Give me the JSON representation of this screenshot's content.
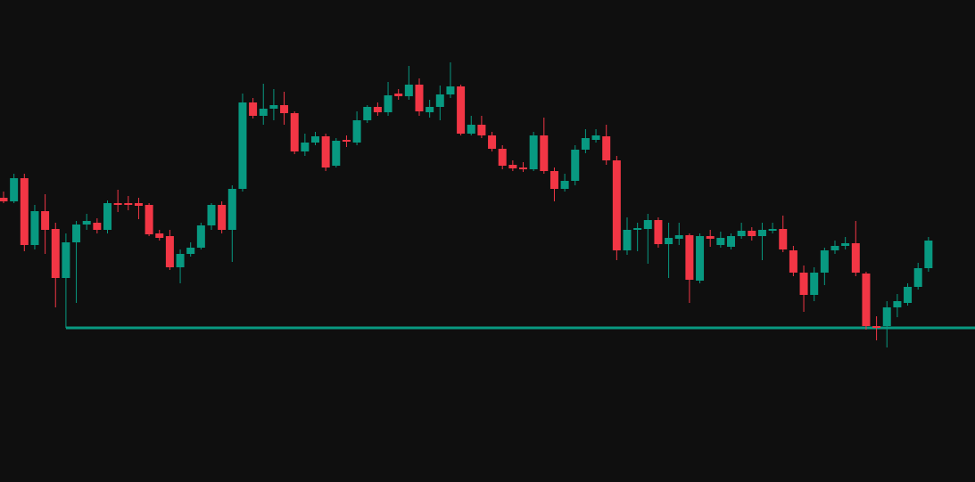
{
  "chart_data": {
    "type": "candlestick",
    "up_color": "#089981",
    "down_color": "#f23645",
    "ylim": [
      0,
      541
    ],
    "grid": false,
    "level": {
      "value": 173,
      "color": "#089981"
    },
    "open": [
      319,
      315,
      341,
      266,
      304,
      284,
      229,
      269,
      289,
      291,
      283,
      313,
      313,
      313,
      311,
      279,
      276,
      241,
      256,
      263,
      288,
      311,
      283,
      329,
      426,
      411,
      419,
      423,
      414,
      371,
      381,
      388,
      355,
      384,
      381,
      406,
      421,
      415,
      436,
      433,
      446,
      415,
      421,
      435,
      444,
      391,
      401,
      389,
      374,
      356,
      353,
      351,
      389,
      349,
      329,
      338,
      373,
      384,
      388,
      361,
      260,
      283,
      284,
      294,
      267,
      273,
      277,
      226,
      276,
      266,
      264,
      276,
      282,
      276,
      282,
      284,
      260,
      235,
      210,
      235,
      260,
      265,
      268,
      234,
      175,
      175,
      196,
      201,
      219,
      240
    ],
    "high": [
      326,
      346,
      346,
      311,
      323,
      291,
      279,
      293,
      301,
      296,
      316,
      328,
      321,
      319,
      313,
      283,
      283,
      261,
      269,
      291,
      313,
      315,
      333,
      436,
      431,
      447,
      441,
      438,
      416,
      391,
      393,
      391,
      386,
      389,
      416,
      423,
      426,
      449,
      441,
      467,
      453,
      429,
      445,
      471,
      446,
      411,
      411,
      393,
      378,
      361,
      359,
      393,
      409,
      353,
      346,
      378,
      396,
      396,
      401,
      366,
      297,
      291,
      301,
      297,
      291,
      291,
      279,
      279,
      283,
      281,
      279,
      291,
      286,
      291,
      291,
      299,
      265,
      243,
      241,
      263,
      271,
      275,
      293,
      236,
      186,
      203,
      211,
      223,
      246,
      275
    ],
    "low": [
      313,
      313,
      259,
      261,
      256,
      196,
      173,
      201,
      283,
      279,
      279,
      303,
      305,
      295,
      276,
      271,
      238,
      223,
      253,
      261,
      283,
      279,
      247,
      326,
      408,
      401,
      406,
      401,
      368,
      366,
      378,
      349,
      353,
      376,
      378,
      403,
      411,
      411,
      429,
      429,
      411,
      409,
      406,
      431,
      389,
      389,
      386,
      371,
      351,
      349,
      348,
      349,
      346,
      315,
      326,
      333,
      369,
      381,
      356,
      249,
      255,
      259,
      245,
      263,
      229,
      266,
      201,
      223,
      264,
      263,
      261,
      273,
      271,
      249,
      279,
      258,
      231,
      191,
      203,
      221,
      256,
      261,
      231,
      171,
      159,
      151,
      185,
      198,
      216,
      236
    ],
    "close": [
      315,
      341,
      266,
      304,
      283,
      229,
      269,
      289,
      293,
      283,
      313,
      311,
      311,
      310,
      278,
      274,
      241,
      256,
      263,
      288,
      311,
      283,
      329,
      426,
      411,
      419,
      423,
      414,
      371,
      381,
      388,
      353,
      383,
      382,
      406,
      421,
      415,
      434,
      433,
      446,
      416,
      421,
      435,
      444,
      391,
      401,
      389,
      374,
      355,
      352,
      351,
      389,
      349,
      329,
      338,
      373,
      386,
      389,
      361,
      260,
      283,
      285,
      294,
      267,
      274,
      277,
      227,
      276,
      273,
      274,
      276,
      282,
      276,
      283,
      284,
      261,
      235,
      210,
      235,
      260,
      265,
      268,
      235,
      175,
      173,
      196,
      203,
      219,
      240,
      271
    ]
  }
}
